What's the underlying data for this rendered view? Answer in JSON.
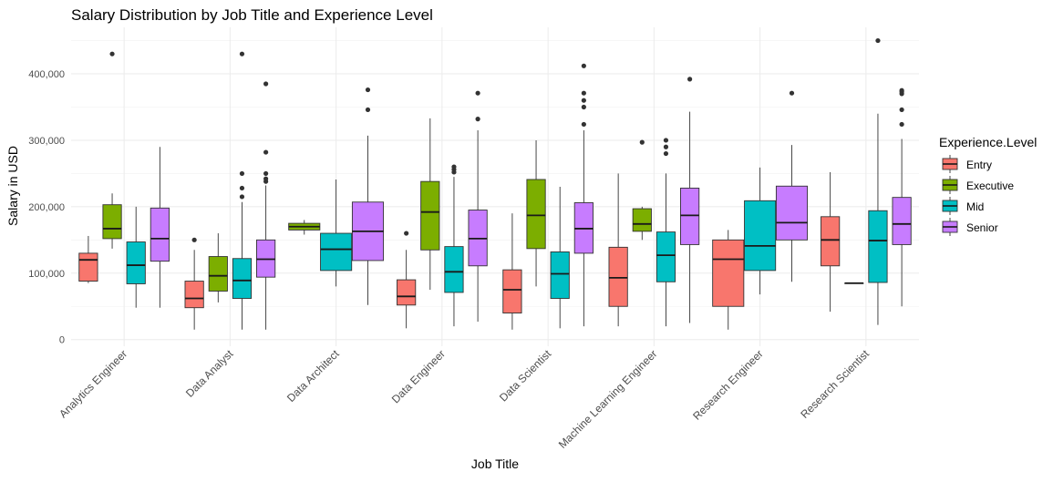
{
  "chart_data": {
    "type": "boxplot",
    "title": "Salary Distribution by Job Title and Experience Level",
    "xlabel": "Job Title",
    "ylabel": "Salary in USD",
    "ylim": [
      -10000,
      470000
    ],
    "yticks": [
      0,
      100000,
      200000,
      300000,
      400000
    ],
    "ytick_labels": [
      "0",
      "100,000",
      "200,000",
      "300,000",
      "400,000"
    ],
    "grid": true,
    "legend": {
      "title": "Experience.Level",
      "position": "right",
      "entries": [
        {
          "name": "Entry",
          "color": "#F8766D"
        },
        {
          "name": "Executive",
          "color": "#7CAE00"
        },
        {
          "name": "Mid",
          "color": "#00BFC4"
        },
        {
          "name": "Senior",
          "color": "#C77CFF"
        }
      ]
    },
    "categories": [
      "Analytics Engineer",
      "Data Analyst",
      "Data Architect",
      "Data Engineer",
      "Data Scientist",
      "Machine Learning Engineer",
      "Research Engineer",
      "Research Scientist"
    ],
    "groups": [
      {
        "category": "Analytics Engineer",
        "boxes": [
          {
            "level": "Entry",
            "min": 85000,
            "q1": 88000,
            "median": 120000,
            "q3": 130000,
            "max": 156000,
            "outliers": []
          },
          {
            "level": "Executive",
            "min": 137000,
            "q1": 152000,
            "median": 167000,
            "q3": 203000,
            "max": 220000,
            "outliers": [
              430000
            ]
          },
          {
            "level": "Mid",
            "min": 48000,
            "q1": 84000,
            "median": 112000,
            "q3": 147000,
            "max": 200000,
            "outliers": []
          },
          {
            "level": "Senior",
            "min": 48000,
            "q1": 118000,
            "median": 152000,
            "q3": 198000,
            "max": 290000,
            "outliers": []
          }
        ]
      },
      {
        "category": "Data Analyst",
        "boxes": [
          {
            "level": "Entry",
            "min": 15000,
            "q1": 48000,
            "median": 62000,
            "q3": 88000,
            "max": 135000,
            "outliers": [
              150000
            ]
          },
          {
            "level": "Executive",
            "min": 56000,
            "q1": 73000,
            "median": 96000,
            "q3": 125000,
            "max": 160000,
            "outliers": []
          },
          {
            "level": "Mid",
            "min": 15000,
            "q1": 62000,
            "median": 89000,
            "q3": 122000,
            "max": 207000,
            "outliers": [
              215000,
              228000,
              250000,
              430000
            ]
          },
          {
            "level": "Senior",
            "min": 15000,
            "q1": 94000,
            "median": 121000,
            "q3": 150000,
            "max": 232000,
            "outliers": [
              238000,
              242000,
              250000,
              282000,
              385000
            ]
          }
        ]
      },
      {
        "category": "Data Architect",
        "boxes": [
          {
            "level": "Executive",
            "min": 158000,
            "q1": 165000,
            "median": 170000,
            "q3": 175000,
            "max": 180000,
            "outliers": []
          },
          {
            "level": "Mid",
            "min": 80000,
            "q1": 104000,
            "median": 136000,
            "q3": 160000,
            "max": 241000,
            "outliers": []
          },
          {
            "level": "Senior",
            "min": 52000,
            "q1": 119000,
            "median": 163000,
            "q3": 207000,
            "max": 307000,
            "outliers": [
              346000,
              376000
            ]
          }
        ]
      },
      {
        "category": "Data Engineer",
        "boxes": [
          {
            "level": "Entry",
            "min": 17000,
            "q1": 52000,
            "median": 65000,
            "q3": 90000,
            "max": 135000,
            "outliers": [
              160000
            ]
          },
          {
            "level": "Executive",
            "min": 75000,
            "q1": 135000,
            "median": 192000,
            "q3": 238000,
            "max": 333000,
            "outliers": []
          },
          {
            "level": "Mid",
            "min": 20000,
            "q1": 71000,
            "median": 102000,
            "q3": 140000,
            "max": 245000,
            "outliers": [
              252000,
              256000,
              260000
            ]
          },
          {
            "level": "Senior",
            "min": 27000,
            "q1": 111000,
            "median": 152000,
            "q3": 195000,
            "max": 315000,
            "outliers": [
              332000,
              371000
            ]
          }
        ]
      },
      {
        "category": "Data Scientist",
        "boxes": [
          {
            "level": "Entry",
            "min": 15000,
            "q1": 40000,
            "median": 75000,
            "q3": 105000,
            "max": 190000,
            "outliers": []
          },
          {
            "level": "Executive",
            "min": 80000,
            "q1": 137000,
            "median": 187000,
            "q3": 241000,
            "max": 300000,
            "outliers": []
          },
          {
            "level": "Mid",
            "min": 17000,
            "q1": 62000,
            "median": 99000,
            "q3": 132000,
            "max": 230000,
            "outliers": []
          },
          {
            "level": "Senior",
            "min": 20000,
            "q1": 130000,
            "median": 167000,
            "q3": 206000,
            "max": 315000,
            "outliers": [
              324000,
              350000,
              360000,
              371000,
              412000
            ]
          }
        ]
      },
      {
        "category": "Machine Learning Engineer",
        "boxes": [
          {
            "level": "Entry",
            "min": 20000,
            "q1": 50000,
            "median": 93000,
            "q3": 139000,
            "max": 250000,
            "outliers": []
          },
          {
            "level": "Executive",
            "min": 150000,
            "q1": 163000,
            "median": 174000,
            "q3": 197000,
            "max": 200000,
            "outliers": [
              297000
            ]
          },
          {
            "level": "Mid",
            "min": 20000,
            "q1": 87000,
            "median": 127000,
            "q3": 162000,
            "max": 250000,
            "outliers": [
              280000,
              290000,
              300000
            ]
          },
          {
            "level": "Senior",
            "min": 25000,
            "q1": 143000,
            "median": 187000,
            "q3": 228000,
            "max": 343000,
            "outliers": [
              392000
            ]
          }
        ]
      },
      {
        "category": "Research Engineer",
        "boxes": [
          {
            "level": "Entry",
            "min": 15000,
            "q1": 50000,
            "median": 121000,
            "q3": 150000,
            "max": 165000,
            "outliers": []
          },
          {
            "level": "Mid",
            "min": 68000,
            "q1": 104000,
            "median": 141000,
            "q3": 209000,
            "max": 259000,
            "outliers": []
          },
          {
            "level": "Senior",
            "min": 87000,
            "q1": 150000,
            "median": 176000,
            "q3": 231000,
            "max": 293000,
            "outliers": [
              371000
            ]
          }
        ]
      },
      {
        "category": "Research Scientist",
        "boxes": [
          {
            "level": "Entry",
            "min": 42000,
            "q1": 111000,
            "median": 150000,
            "q3": 185000,
            "max": 252000,
            "outliers": []
          },
          {
            "level": "Executive",
            "min": 85000,
            "q1": 85000,
            "median": 85000,
            "q3": 85000,
            "max": 85000,
            "outliers": []
          },
          {
            "level": "Mid",
            "min": 22000,
            "q1": 86000,
            "median": 149000,
            "q3": 194000,
            "max": 340000,
            "outliers": [
              450000
            ]
          },
          {
            "level": "Senior",
            "min": 50000,
            "q1": 143000,
            "median": 174000,
            "q3": 214000,
            "max": 302000,
            "outliers": [
              324000,
              346000,
              370000,
              373000,
              375000
            ]
          }
        ]
      }
    ]
  }
}
